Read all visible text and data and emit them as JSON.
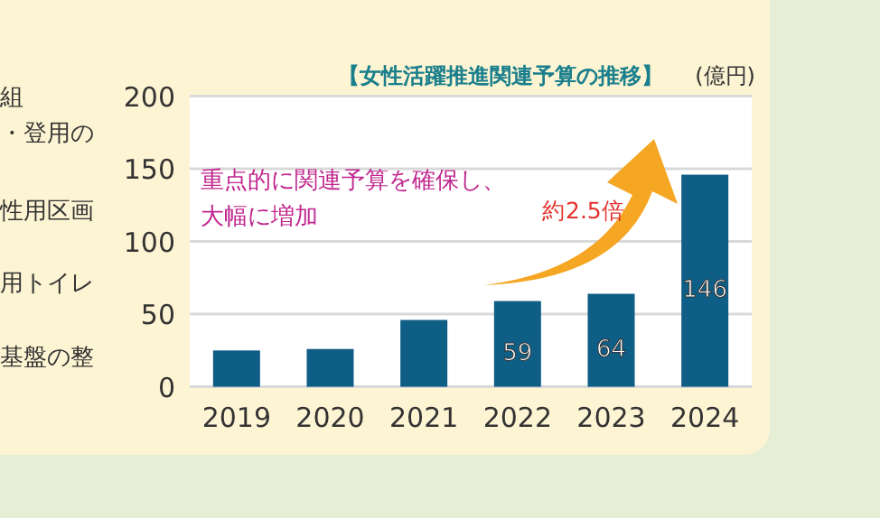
{
  "chart_data": {
    "type": "bar",
    "title": "【女性活躍推進関連予算の推移】",
    "ylabel": "(億円)",
    "categories": [
      "2019",
      "2020",
      "2021",
      "2022",
      "2023",
      "2024"
    ],
    "values": [
      25,
      26,
      46,
      59,
      64,
      146
    ],
    "color": "#0f5e86",
    "value_labels": [
      null,
      null,
      null,
      "59",
      "64",
      "146"
    ],
    "ylim": [
      0,
      200
    ],
    "yticks": [
      0,
      50,
      100,
      150,
      200
    ],
    "grid": "y",
    "annotations": [
      "重点的に関連予算を確保し、",
      "大幅に増加",
      "約2.5倍",
      "組",
      "・登用の",
      "性用区画",
      "用トイレ",
      "基盤の整"
    ]
  }
}
